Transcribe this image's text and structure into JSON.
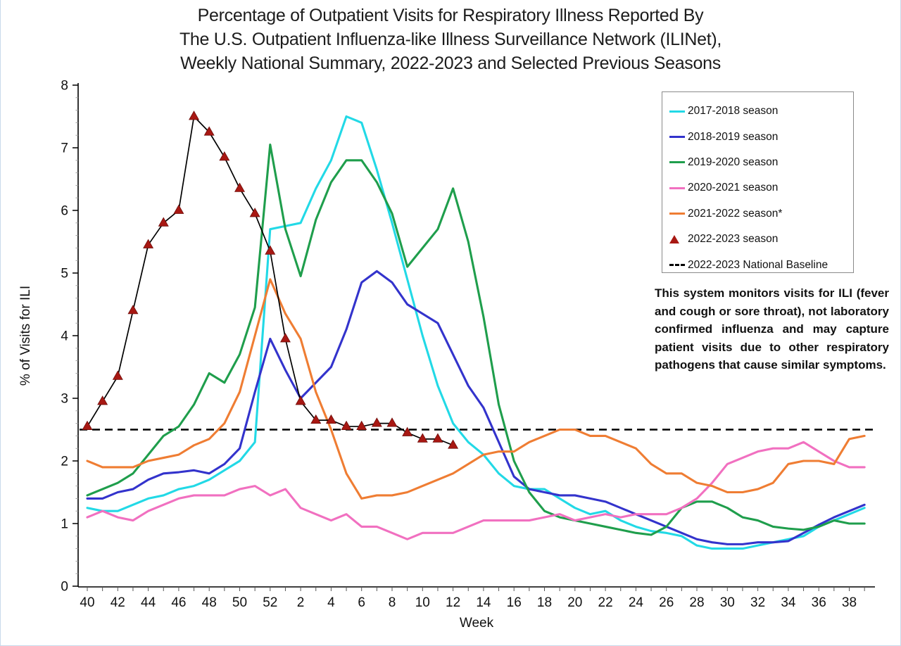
{
  "window": {
    "background": "#ffffff",
    "edge_line_color": "#c9daeb"
  },
  "title": {
    "lines": [
      "Percentage of Outpatient Visits for Respiratory Illness Reported By",
      "The U.S. Outpatient Influenza-like Illness Surveillance Network (ILINet),",
      "Weekly National Summary, 2022-2023 and Selected Previous Seasons"
    ]
  },
  "note": {
    "text": "This system monitors visits for ILI (fever and cough or sore throat), not laboratory confirmed influenza and may capture patient visits due to other respiratory pathogens that cause similar symptoms."
  },
  "legend": {
    "items": [
      {
        "label": "2017-2018 season",
        "marker": "line",
        "color": "#22d9e6"
      },
      {
        "label": "2018-2019 season",
        "marker": "line",
        "color": "#3333cc"
      },
      {
        "label": "2019-2020 season",
        "marker": "line",
        "color": "#1f9e4c"
      },
      {
        "label": "2020-2021 season",
        "marker": "line",
        "color": "#f170c0"
      },
      {
        "label": "2021-2022 season*",
        "marker": "line",
        "color": "#ef7d33"
      },
      {
        "label": "2022-2023 season",
        "marker": "triangle",
        "color": "#a81813"
      },
      {
        "label": "2022-2023 National Baseline",
        "marker": "dashed",
        "color": "#000000"
      }
    ]
  },
  "chart_data": {
    "type": "line",
    "title": "",
    "xlabel": "Week",
    "ylabel": "% of Visits for ILI",
    "ylim": [
      0,
      8
    ],
    "yticks": [
      0,
      1,
      2,
      3,
      4,
      5,
      6,
      7,
      8
    ],
    "grid": false,
    "legend_position": "upper right",
    "x_categories": [
      "40",
      "41",
      "42",
      "43",
      "44",
      "45",
      "46",
      "47",
      "48",
      "49",
      "50",
      "51",
      "52",
      "1",
      "2",
      "3",
      "4",
      "5",
      "6",
      "7",
      "8",
      "9",
      "10",
      "11",
      "12",
      "13",
      "14",
      "15",
      "16",
      "17",
      "18",
      "19",
      "20",
      "21",
      "22",
      "23",
      "24",
      "25",
      "26",
      "27",
      "28",
      "29",
      "30",
      "31",
      "32",
      "33",
      "34",
      "35",
      "36",
      "37",
      "38",
      "39"
    ],
    "x_labeled_ticks": [
      "40",
      "42",
      "44",
      "46",
      "48",
      "50",
      "52",
      "2",
      "4",
      "6",
      "8",
      "10",
      "12",
      "14",
      "16",
      "18",
      "20",
      "22",
      "24",
      "26",
      "28",
      "30",
      "32",
      "34",
      "36",
      "38"
    ],
    "baseline": {
      "name": "2022-2023 National Baseline",
      "value": 2.5,
      "style": "dashed",
      "color": "#000000"
    },
    "series": [
      {
        "name": "2017-2018 season",
        "color": "#22d9e6",
        "values": [
          1.25,
          1.2,
          1.2,
          1.3,
          1.4,
          1.45,
          1.55,
          1.6,
          1.7,
          1.85,
          2.0,
          2.3,
          5.7,
          5.75,
          5.8,
          6.35,
          6.8,
          7.5,
          7.4,
          6.65,
          5.8,
          4.9,
          4.0,
          3.2,
          2.6,
          2.3,
          2.1,
          1.8,
          1.6,
          1.55,
          1.55,
          1.4,
          1.25,
          1.15,
          1.2,
          1.05,
          0.95,
          0.88,
          0.85,
          0.8,
          0.65,
          0.6,
          0.6,
          0.6,
          0.65,
          0.7,
          0.75,
          0.8,
          0.95,
          1.05,
          1.15,
          1.25
        ]
      },
      {
        "name": "2018-2019 season",
        "color": "#3333cc",
        "values": [
          1.4,
          1.4,
          1.5,
          1.55,
          1.7,
          1.8,
          1.82,
          1.85,
          1.8,
          1.95,
          2.2,
          3.1,
          3.95,
          3.45,
          3.0,
          3.25,
          3.5,
          4.1,
          4.85,
          5.03,
          4.85,
          4.5,
          4.35,
          4.2,
          3.7,
          3.2,
          2.85,
          2.3,
          1.75,
          1.55,
          1.5,
          1.45,
          1.45,
          1.4,
          1.35,
          1.25,
          1.15,
          1.05,
          0.95,
          0.85,
          0.75,
          0.7,
          0.67,
          0.67,
          0.7,
          0.7,
          0.72,
          0.85,
          0.98,
          1.1,
          1.2,
          1.3
        ]
      },
      {
        "name": "2019-2020 season",
        "color": "#1f9e4c",
        "values": [
          1.45,
          1.55,
          1.65,
          1.8,
          2.1,
          2.4,
          2.55,
          2.9,
          3.4,
          3.25,
          3.7,
          4.45,
          7.05,
          5.7,
          4.95,
          5.85,
          6.45,
          6.8,
          6.8,
          6.45,
          5.95,
          5.1,
          5.4,
          5.7,
          6.35,
          5.5,
          4.3,
          2.9,
          2.0,
          1.5,
          1.2,
          1.1,
          1.05,
          1.0,
          0.95,
          0.9,
          0.85,
          0.82,
          0.95,
          1.25,
          1.35,
          1.35,
          1.25,
          1.1,
          1.05,
          0.95,
          0.92,
          0.9,
          0.95,
          1.05,
          1.0,
          1.0
        ]
      },
      {
        "name": "2020-2021 season",
        "color": "#f170c0",
        "values": [
          1.1,
          1.2,
          1.1,
          1.05,
          1.2,
          1.3,
          1.4,
          1.45,
          1.45,
          1.45,
          1.55,
          1.6,
          1.45,
          1.55,
          1.25,
          1.15,
          1.05,
          1.15,
          0.95,
          0.95,
          0.85,
          0.75,
          0.85,
          0.85,
          0.85,
          0.95,
          1.05,
          1.05,
          1.05,
          1.05,
          1.1,
          1.15,
          1.05,
          1.1,
          1.15,
          1.1,
          1.15,
          1.15,
          1.15,
          1.25,
          1.4,
          1.65,
          1.95,
          2.05,
          2.15,
          2.2,
          2.2,
          2.3,
          2.15,
          2.0,
          1.9,
          1.9
        ]
      },
      {
        "name": "2021-2022 season*",
        "color": "#ef7d33",
        "values": [
          2.0,
          1.9,
          1.9,
          1.9,
          2.0,
          2.05,
          2.1,
          2.25,
          2.35,
          2.6,
          3.1,
          4.0,
          4.9,
          4.35,
          3.95,
          3.1,
          2.5,
          1.8,
          1.4,
          1.45,
          1.45,
          1.5,
          1.6,
          1.7,
          1.8,
          1.95,
          2.1,
          2.15,
          2.15,
          2.3,
          2.4,
          2.5,
          2.5,
          2.4,
          2.4,
          2.3,
          2.2,
          1.95,
          1.8,
          1.8,
          1.65,
          1.6,
          1.5,
          1.5,
          1.55,
          1.65,
          1.95,
          2.0,
          2.0,
          1.95,
          2.35,
          2.4
        ]
      },
      {
        "name": "2022-2023 season",
        "color": "#a81813",
        "line_color": "#000000",
        "marker": "triangle",
        "values": [
          2.55,
          2.95,
          3.35,
          4.4,
          5.45,
          5.8,
          6.0,
          7.5,
          7.25,
          6.85,
          6.35,
          5.95,
          5.35,
          3.95,
          2.95,
          2.65,
          2.65,
          2.55,
          2.55,
          2.6,
          2.6,
          2.45,
          2.35,
          2.35,
          2.25,
          null,
          null,
          null,
          null,
          null,
          null,
          null,
          null,
          null,
          null,
          null,
          null,
          null,
          null,
          null,
          null,
          null,
          null,
          null,
          null,
          null,
          null,
          null,
          null,
          null,
          null,
          null
        ]
      }
    ]
  }
}
